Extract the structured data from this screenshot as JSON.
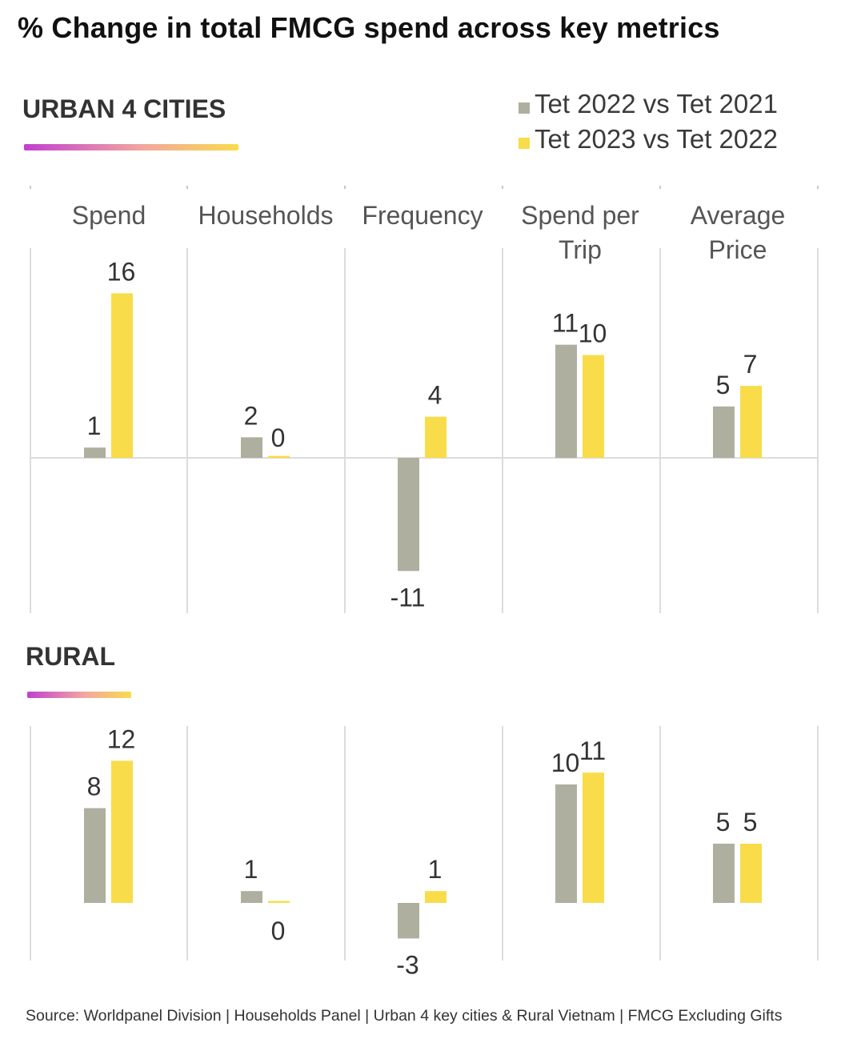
{
  "title": "% Change in total FMCG spend across key metrics",
  "legend": [
    {
      "label": "Tet 2022 vs Tet 2021",
      "color": "#afaf9f"
    },
    {
      "label": "Tet 2023 vs Tet 2022",
      "color": "#f8dc4a"
    }
  ],
  "source": "Source: Worldpanel Division | Households Panel | Urban 4 key cities & Rural Vietnam | FMCG Excluding Gifts",
  "chart_data": [
    {
      "type": "bar",
      "title": "URBAN 4 CITIES",
      "categories": [
        [
          "Spend"
        ],
        [
          "Households"
        ],
        [
          "Frequency"
        ],
        [
          "Spend per",
          "Trip"
        ],
        [
          "Average",
          "Price"
        ]
      ],
      "series": [
        {
          "name": "Tet 2022 vs Tet 2021",
          "values": [
            1,
            2,
            -11,
            11,
            5
          ]
        },
        {
          "name": "Tet 2023 vs Tet 2022",
          "values": [
            16,
            0,
            4,
            10,
            7
          ]
        }
      ],
      "zero_line": true
    },
    {
      "type": "bar",
      "title": "RURAL",
      "categories": [
        [
          "Spend"
        ],
        [
          "Households"
        ],
        [
          "Frequency"
        ],
        [
          "Spend per",
          "Trip"
        ],
        [
          "Average",
          "Price"
        ]
      ],
      "series": [
        {
          "name": "Tet 2022 vs Tet 2021",
          "values": [
            8,
            1,
            -3,
            10,
            5
          ]
        },
        {
          "name": "Tet 2023 vs Tet 2022",
          "values": [
            12,
            0,
            1,
            11,
            5
          ]
        }
      ],
      "zero_line": false
    }
  ]
}
